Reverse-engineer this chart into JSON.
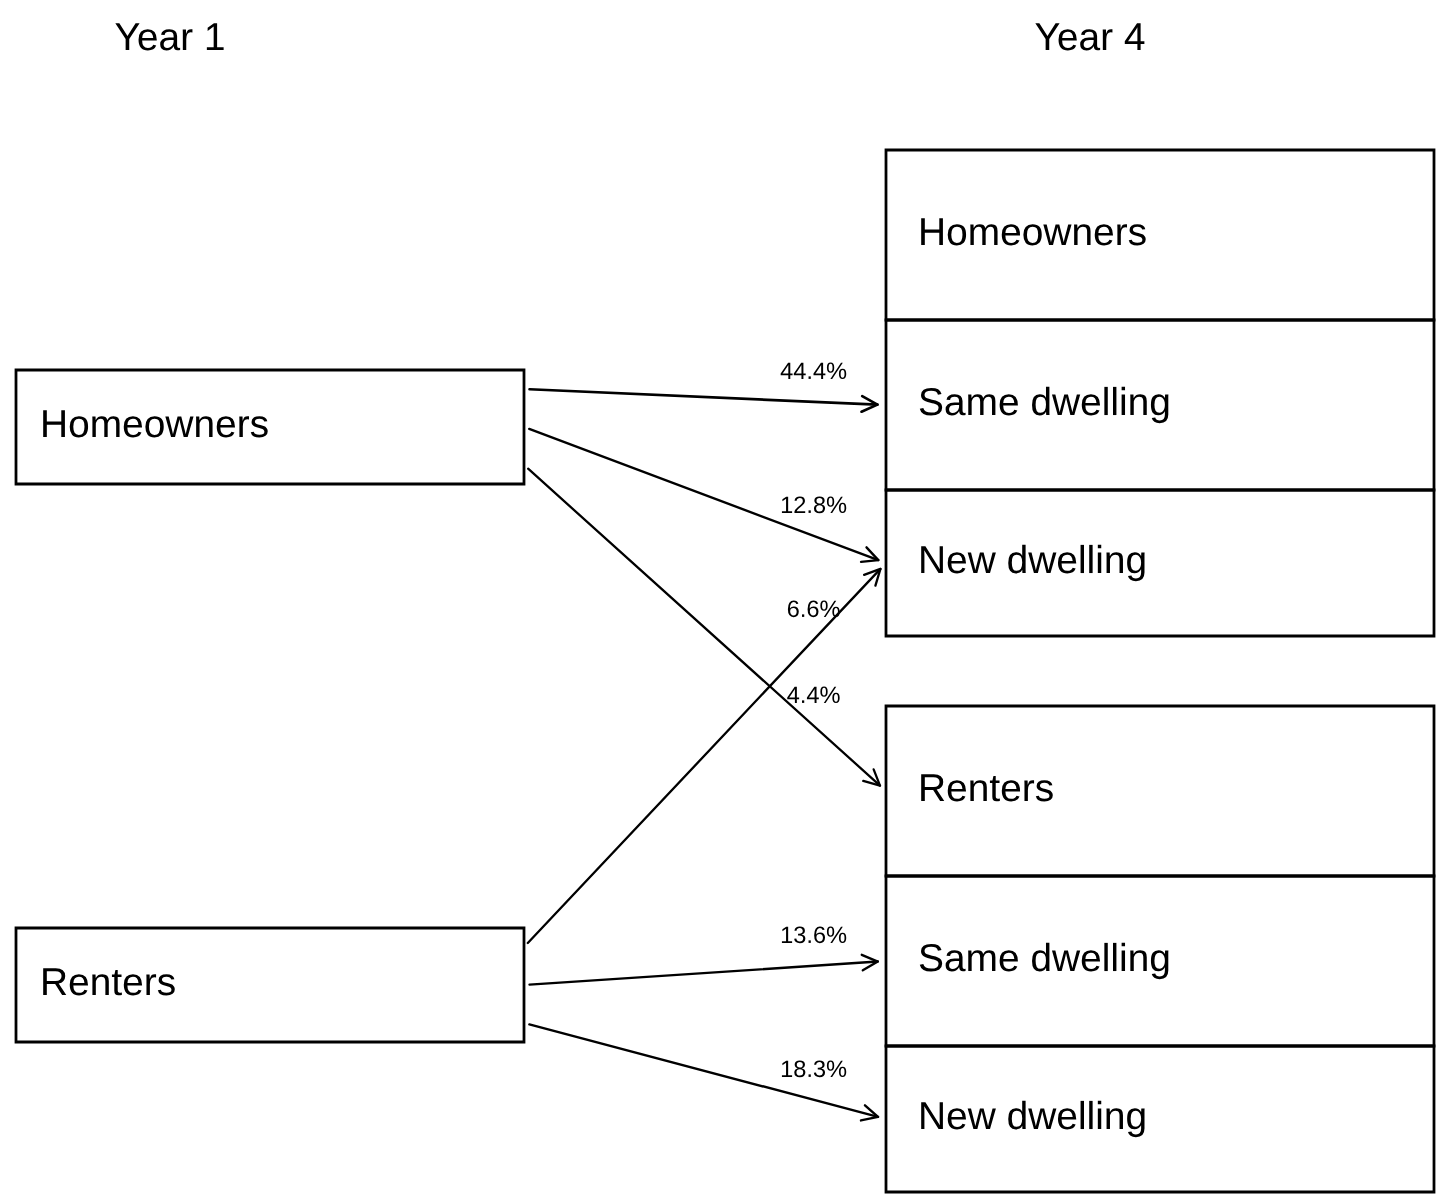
{
  "chart_data": {
    "type": "other",
    "annotations": [
      "Year 1",
      "Year 4"
    ],
    "categories": [
      "Homeowners",
      "Same dwelling",
      "New dwelling",
      "Renters",
      "Same dwelling",
      "New dwelling"
    ],
    "series": [
      {
        "name": "Homeowners",
        "values": [
          null,
          44.4,
          12.8,
          4.4,
          null,
          null
        ],
        "value_labels": [
          null,
          "44.4%",
          "12.8%",
          "4.4%",
          null,
          null
        ]
      },
      {
        "name": "Renters",
        "values": [
          null,
          null,
          6.6,
          null,
          13.6,
          18.3
        ],
        "value_labels": [
          null,
          null,
          "6.6%",
          null,
          "13.6%",
          "18.3%"
        ]
      }
    ]
  }
}
